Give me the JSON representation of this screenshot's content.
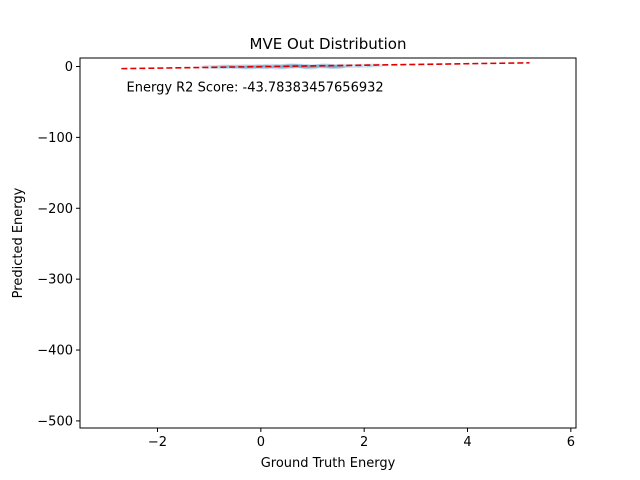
{
  "chart_data": {
    "type": "scatter",
    "title": "MVE Out Distribution",
    "xlabel": "Ground Truth Energy",
    "ylabel": "Predicted Energy",
    "xlim": [
      -3.5,
      6.1
    ],
    "ylim": [
      -510,
      12
    ],
    "x_ticks": [
      -2,
      0,
      2,
      4,
      6
    ],
    "y_ticks": [
      0,
      -100,
      -200,
      -300,
      -400,
      -500
    ],
    "x_tick_labels": [
      "−2",
      "0",
      "2",
      "4",
      "6"
    ],
    "y_tick_labels": [
      "0",
      "−100",
      "−200",
      "−300",
      "−400",
      "−500"
    ],
    "annotation": "Energy R2 Score: -43.78383457656932",
    "annotation_position": [
      -2.6,
      -35
    ],
    "fit_line": {
      "style": "dashed",
      "color": "#e00000",
      "points": [
        [
          -2.7,
          -3
        ],
        [
          5.2,
          5.2
        ]
      ]
    },
    "scatter": {
      "color": "#1f77b4",
      "x": [
        -1.0,
        -0.8,
        -0.6,
        -0.5,
        -0.4,
        -0.3,
        -0.2,
        -0.1,
        0.0,
        0.1,
        0.2,
        0.3,
        0.4,
        0.5,
        0.6,
        0.7,
        0.8,
        0.9,
        1.0,
        1.1,
        1.2,
        1.3,
        1.4,
        1.5,
        1.6,
        1.8,
        2.0,
        2.2,
        -0.7,
        0.05,
        0.35,
        0.65,
        0.95,
        1.25,
        -0.25,
        0.55,
        0.85,
        1.45
      ],
      "y": [
        -0.5,
        -1,
        -0.5,
        0,
        -1,
        0.5,
        -0.5,
        0,
        0.5,
        -0.5,
        1,
        0,
        0.5,
        -1,
        0.5,
        0,
        1,
        -0.5,
        0.5,
        0,
        1,
        -0.5,
        0.5,
        0,
        1,
        0.5,
        1,
        1.5,
        0,
        -1,
        -1.5,
        1.5,
        -1.5,
        1.5,
        -1.5,
        1.5,
        0,
        -1
      ]
    }
  }
}
